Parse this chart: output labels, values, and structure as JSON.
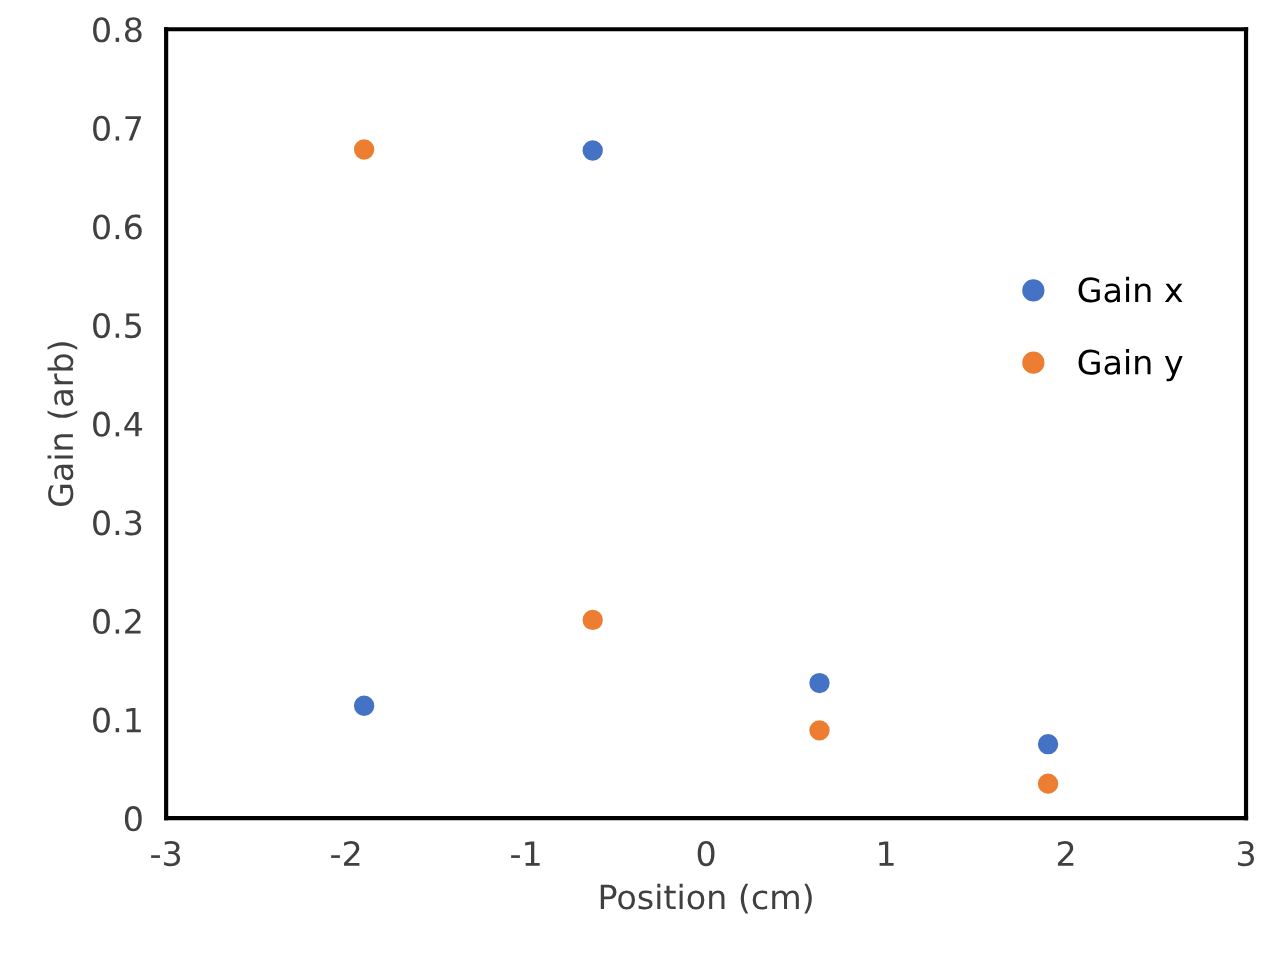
{
  "chart_data": {
    "type": "scatter",
    "xlabel": "Position (cm)",
    "ylabel": "Gain (arb)",
    "x": [
      -1.9,
      -0.63,
      0.63,
      1.9
    ],
    "series": [
      {
        "name": "Gain x",
        "color": "#4472c4",
        "values": [
          0.114,
          0.677,
          0.137,
          0.075
        ]
      },
      {
        "name": "Gain y",
        "color": "#ed7d31",
        "values": [
          0.678,
          0.201,
          0.089,
          0.035
        ]
      }
    ],
    "xlim": [
      -3,
      3
    ],
    "xticks": [
      -3,
      -2,
      -1,
      0,
      1,
      2,
      3
    ],
    "ylim": [
      0,
      0.8
    ],
    "yticks": [
      0,
      0.1,
      0.2,
      0.3,
      0.4,
      0.5,
      0.6,
      0.7,
      0.8
    ],
    "grid": false,
    "legend": "right",
    "marker": "circle"
  }
}
